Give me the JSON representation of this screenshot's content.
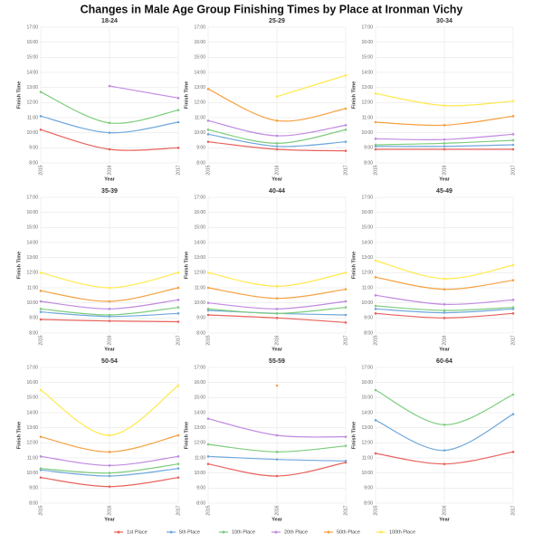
{
  "title": "Changes in Male Age Group Finishing Times by Place at Ironman Vichy",
  "chart_data": [
    {
      "type": "line",
      "title": "18-24",
      "x_label": "Year",
      "y_label": "Finish Time",
      "categories": [
        "2015",
        "2016",
        "2017"
      ],
      "ylim": [
        8,
        17
      ],
      "yticks": [
        {
          "value": 8,
          "label": "8:00"
        },
        {
          "value": 9,
          "label": "9:00"
        },
        {
          "value": 10,
          "label": "10:00"
        },
        {
          "value": 11,
          "label": "11:00"
        },
        {
          "value": 12,
          "label": "12:00"
        },
        {
          "value": 13,
          "label": "13:00"
        },
        {
          "value": 14,
          "label": "14:00"
        },
        {
          "value": 15,
          "label": "15:00"
        },
        {
          "value": 16,
          "label": "16:00"
        },
        {
          "value": 17,
          "label": "17:00"
        }
      ],
      "series": [
        {
          "name": "1st Place",
          "color": "#e8625d",
          "values": [
            10.2,
            8.9,
            9.0
          ]
        },
        {
          "name": "5th Place",
          "color": "#6fa8dc",
          "values": [
            11.1,
            10.0,
            10.7
          ]
        },
        {
          "name": "10th Place",
          "color": "#7dcc7d",
          "values": [
            12.7,
            10.65,
            11.5
          ]
        },
        {
          "name": "20th Place",
          "color": "#c08ae0",
          "values": [
            null,
            13.1,
            12.3
          ]
        },
        {
          "name": "50th Place",
          "color": "#f5a142",
          "values": [
            null,
            null,
            null
          ]
        },
        {
          "name": "100th Place",
          "color": "#ffe94d",
          "values": [
            null,
            null,
            null
          ]
        }
      ]
    },
    {
      "type": "line",
      "title": "25-29",
      "x_label": "Year",
      "y_label": "Finish Time",
      "categories": [
        "2015",
        "2016",
        "2017"
      ],
      "ylim": [
        8,
        17
      ],
      "yticks": [
        {
          "value": 8,
          "label": "8:00"
        },
        {
          "value": 9,
          "label": "9:00"
        },
        {
          "value": 10,
          "label": "10:00"
        },
        {
          "value": 11,
          "label": "11:00"
        },
        {
          "value": 12,
          "label": "12:00"
        },
        {
          "value": 13,
          "label": "13:00"
        },
        {
          "value": 14,
          "label": "14:00"
        },
        {
          "value": 15,
          "label": "15:00"
        },
        {
          "value": 16,
          "label": "16:00"
        },
        {
          "value": 17,
          "label": "17:00"
        }
      ],
      "series": [
        {
          "name": "1st Place",
          "color": "#e8625d",
          "values": [
            9.4,
            8.9,
            8.8
          ]
        },
        {
          "name": "5th Place",
          "color": "#6fa8dc",
          "values": [
            9.9,
            9.1,
            9.4
          ]
        },
        {
          "name": "10th Place",
          "color": "#7dcc7d",
          "values": [
            10.2,
            9.3,
            10.2
          ]
        },
        {
          "name": "20th Place",
          "color": "#c08ae0",
          "values": [
            10.8,
            9.8,
            10.5
          ]
        },
        {
          "name": "50th Place",
          "color": "#f5a142",
          "values": [
            12.9,
            10.8,
            11.6
          ]
        },
        {
          "name": "100th Place",
          "color": "#ffe94d",
          "values": [
            null,
            12.4,
            13.8
          ]
        }
      ]
    },
    {
      "type": "line",
      "title": "30-34",
      "x_label": "Year",
      "y_label": "Finish Time",
      "categories": [
        "2015",
        "2016",
        "2017"
      ],
      "ylim": [
        8,
        17
      ],
      "yticks": [
        {
          "value": 8,
          "label": "8:00"
        },
        {
          "value": 9,
          "label": "9:00"
        },
        {
          "value": 10,
          "label": "10:00"
        },
        {
          "value": 11,
          "label": "11:00"
        },
        {
          "value": 12,
          "label": "12:00"
        },
        {
          "value": 13,
          "label": "13:00"
        },
        {
          "value": 14,
          "label": "14:00"
        },
        {
          "value": 15,
          "label": "15:00"
        },
        {
          "value": 16,
          "label": "16:00"
        },
        {
          "value": 17,
          "label": "17:00"
        }
      ],
      "series": [
        {
          "name": "1st Place",
          "color": "#e8625d",
          "values": [
            8.9,
            8.9,
            8.9
          ]
        },
        {
          "name": "5th Place",
          "color": "#6fa8dc",
          "values": [
            9.1,
            9.1,
            9.2
          ]
        },
        {
          "name": "10th Place",
          "color": "#7dcc7d",
          "values": [
            9.2,
            9.3,
            9.5
          ]
        },
        {
          "name": "20th Place",
          "color": "#c08ae0",
          "values": [
            9.6,
            9.55,
            9.9
          ]
        },
        {
          "name": "50th Place",
          "color": "#f5a142",
          "values": [
            10.7,
            10.5,
            11.1
          ]
        },
        {
          "name": "100th Place",
          "color": "#ffe94d",
          "values": [
            12.6,
            11.8,
            12.1
          ]
        }
      ]
    },
    {
      "type": "line",
      "title": "35-39",
      "x_label": "Year",
      "y_label": "Finish Time",
      "categories": [
        "2015",
        "2016",
        "2017"
      ],
      "ylim": [
        8,
        17
      ],
      "yticks": [
        {
          "value": 8,
          "label": "8:00"
        },
        {
          "value": 9,
          "label": "9:00"
        },
        {
          "value": 10,
          "label": "10:00"
        },
        {
          "value": 11,
          "label": "11:00"
        },
        {
          "value": 12,
          "label": "12:00"
        },
        {
          "value": 13,
          "label": "13:00"
        },
        {
          "value": 14,
          "label": "14:00"
        },
        {
          "value": 15,
          "label": "15:00"
        },
        {
          "value": 16,
          "label": "16:00"
        },
        {
          "value": 17,
          "label": "17:00"
        }
      ],
      "series": [
        {
          "name": "1st Place",
          "color": "#e8625d",
          "values": [
            8.9,
            8.8,
            8.75
          ]
        },
        {
          "name": "5th Place",
          "color": "#6fa8dc",
          "values": [
            9.4,
            9.1,
            9.3
          ]
        },
        {
          "name": "10th Place",
          "color": "#7dcc7d",
          "values": [
            9.6,
            9.2,
            9.7
          ]
        },
        {
          "name": "20th Place",
          "color": "#c08ae0",
          "values": [
            10.1,
            9.6,
            10.2
          ]
        },
        {
          "name": "50th Place",
          "color": "#f5a142",
          "values": [
            10.8,
            10.1,
            11.0
          ]
        },
        {
          "name": "100th Place",
          "color": "#ffe94d",
          "values": [
            12.0,
            11.0,
            12.0
          ]
        }
      ]
    },
    {
      "type": "line",
      "title": "40-44",
      "x_label": "Year",
      "y_label": "Finish Time",
      "categories": [
        "2015",
        "2016",
        "2017"
      ],
      "ylim": [
        8,
        17
      ],
      "yticks": [
        {
          "value": 8,
          "label": "8:00"
        },
        {
          "value": 9,
          "label": "9:00"
        },
        {
          "value": 10,
          "label": "10:00"
        },
        {
          "value": 11,
          "label": "11:00"
        },
        {
          "value": 12,
          "label": "12:00"
        },
        {
          "value": 13,
          "label": "13:00"
        },
        {
          "value": 14,
          "label": "14:00"
        },
        {
          "value": 15,
          "label": "15:00"
        },
        {
          "value": 16,
          "label": "16:00"
        },
        {
          "value": 17,
          "label": "17:00"
        }
      ],
      "series": [
        {
          "name": "1st Place",
          "color": "#e8625d",
          "values": [
            9.2,
            9.0,
            8.7
          ]
        },
        {
          "name": "5th Place",
          "color": "#6fa8dc",
          "values": [
            9.5,
            9.3,
            9.2
          ]
        },
        {
          "name": "10th Place",
          "color": "#7dcc7d",
          "values": [
            9.6,
            9.3,
            9.7
          ]
        },
        {
          "name": "20th Place",
          "color": "#c08ae0",
          "values": [
            10.0,
            9.6,
            10.1
          ]
        },
        {
          "name": "50th Place",
          "color": "#f5a142",
          "values": [
            11.0,
            10.3,
            10.9
          ]
        },
        {
          "name": "100th Place",
          "color": "#ffe94d",
          "values": [
            12.0,
            11.1,
            12.0
          ]
        }
      ]
    },
    {
      "type": "line",
      "title": "45-49",
      "x_label": "Year",
      "y_label": "Finish Time",
      "categories": [
        "2015",
        "2016",
        "2017"
      ],
      "ylim": [
        8,
        17
      ],
      "yticks": [
        {
          "value": 8,
          "label": "8:00"
        },
        {
          "value": 9,
          "label": "9:00"
        },
        {
          "value": 10,
          "label": "10:00"
        },
        {
          "value": 11,
          "label": "11:00"
        },
        {
          "value": 12,
          "label": "12:00"
        },
        {
          "value": 13,
          "label": "13:00"
        },
        {
          "value": 14,
          "label": "14:00"
        },
        {
          "value": 15,
          "label": "15:00"
        },
        {
          "value": 16,
          "label": "16:00"
        },
        {
          "value": 17,
          "label": "17:00"
        }
      ],
      "series": [
        {
          "name": "1st Place",
          "color": "#e8625d",
          "values": [
            9.3,
            9.0,
            9.3
          ]
        },
        {
          "name": "5th Place",
          "color": "#6fa8dc",
          "values": [
            9.6,
            9.35,
            9.6
          ]
        },
        {
          "name": "10th Place",
          "color": "#7dcc7d",
          "values": [
            9.8,
            9.5,
            9.7
          ]
        },
        {
          "name": "20th Place",
          "color": "#c08ae0",
          "values": [
            10.5,
            9.9,
            10.2
          ]
        },
        {
          "name": "50th Place",
          "color": "#f5a142",
          "values": [
            11.7,
            10.9,
            11.5
          ]
        },
        {
          "name": "100th Place",
          "color": "#ffe94d",
          "values": [
            12.8,
            11.6,
            12.5
          ]
        }
      ]
    },
    {
      "type": "line",
      "title": "50-54",
      "x_label": "Year",
      "y_label": "Finish Time",
      "categories": [
        "2015",
        "2016",
        "2017"
      ],
      "ylim": [
        8,
        17
      ],
      "yticks": [
        {
          "value": 8,
          "label": "8:00"
        },
        {
          "value": 9,
          "label": "9:00"
        },
        {
          "value": 10,
          "label": "10:00"
        },
        {
          "value": 11,
          "label": "11:00"
        },
        {
          "value": 12,
          "label": "12:00"
        },
        {
          "value": 13,
          "label": "13:00"
        },
        {
          "value": 14,
          "label": "14:00"
        },
        {
          "value": 15,
          "label": "15:00"
        },
        {
          "value": 16,
          "label": "16:00"
        },
        {
          "value": 17,
          "label": "17:00"
        }
      ],
      "series": [
        {
          "name": "1st Place",
          "color": "#e8625d",
          "values": [
            9.7,
            9.1,
            9.7
          ]
        },
        {
          "name": "5th Place",
          "color": "#6fa8dc",
          "values": [
            10.2,
            9.8,
            10.3
          ]
        },
        {
          "name": "10th Place",
          "color": "#7dcc7d",
          "values": [
            10.3,
            10.0,
            10.6
          ]
        },
        {
          "name": "20th Place",
          "color": "#c08ae0",
          "values": [
            11.1,
            10.5,
            11.1
          ]
        },
        {
          "name": "50th Place",
          "color": "#f5a142",
          "values": [
            12.4,
            11.4,
            12.5
          ]
        },
        {
          "name": "100th Place",
          "color": "#ffe94d",
          "values": [
            15.5,
            12.5,
            15.8
          ]
        }
      ]
    },
    {
      "type": "line",
      "title": "55-59",
      "x_label": "Year",
      "y_label": "Finish Time",
      "categories": [
        "2015",
        "2016",
        "2017"
      ],
      "ylim": [
        8,
        17
      ],
      "yticks": [
        {
          "value": 8,
          "label": "8:00"
        },
        {
          "value": 9,
          "label": "9:00"
        },
        {
          "value": 10,
          "label": "10:00"
        },
        {
          "value": 11,
          "label": "11:00"
        },
        {
          "value": 12,
          "label": "12:00"
        },
        {
          "value": 13,
          "label": "13:00"
        },
        {
          "value": 14,
          "label": "14:00"
        },
        {
          "value": 15,
          "label": "15:00"
        },
        {
          "value": 16,
          "label": "16:00"
        },
        {
          "value": 17,
          "label": "17:00"
        }
      ],
      "series": [
        {
          "name": "1st Place",
          "color": "#e8625d",
          "values": [
            10.6,
            9.8,
            10.7
          ]
        },
        {
          "name": "5th Place",
          "color": "#6fa8dc",
          "values": [
            11.1,
            10.9,
            10.8
          ]
        },
        {
          "name": "10th Place",
          "color": "#7dcc7d",
          "values": [
            11.9,
            11.4,
            11.8
          ]
        },
        {
          "name": "20th Place",
          "color": "#c08ae0",
          "values": [
            13.6,
            12.5,
            12.4
          ]
        },
        {
          "name": "50th Place",
          "color": "#f5a142",
          "values": [
            null,
            15.8,
            null
          ]
        },
        {
          "name": "100th Place",
          "color": "#ffe94d",
          "values": [
            null,
            null,
            null
          ]
        }
      ]
    },
    {
      "type": "line",
      "title": "60-64",
      "x_label": "Year",
      "y_label": "Finish Time",
      "categories": [
        "2015",
        "2016",
        "2017"
      ],
      "ylim": [
        8,
        17
      ],
      "yticks": [
        {
          "value": 8,
          "label": "8:00"
        },
        {
          "value": 9,
          "label": "9:00"
        },
        {
          "value": 10,
          "label": "10:00"
        },
        {
          "value": 11,
          "label": "11:00"
        },
        {
          "value": 12,
          "label": "12:00"
        },
        {
          "value": 13,
          "label": "13:00"
        },
        {
          "value": 14,
          "label": "14:00"
        },
        {
          "value": 15,
          "label": "15:00"
        },
        {
          "value": 16,
          "label": "16:00"
        },
        {
          "value": 17,
          "label": "17:00"
        }
      ],
      "series": [
        {
          "name": "1st Place",
          "color": "#e8625d",
          "values": [
            11.3,
            10.6,
            11.4
          ]
        },
        {
          "name": "5th Place",
          "color": "#6fa8dc",
          "values": [
            13.5,
            11.5,
            13.9
          ]
        },
        {
          "name": "10th Place",
          "color": "#7dcc7d",
          "values": [
            15.5,
            13.2,
            15.2
          ]
        },
        {
          "name": "20th Place",
          "color": "#c08ae0",
          "values": [
            null,
            null,
            null
          ]
        },
        {
          "name": "50th Place",
          "color": "#f5a142",
          "values": [
            null,
            null,
            null
          ]
        },
        {
          "name": "100th Place",
          "color": "#ffe94d",
          "values": [
            null,
            null,
            null
          ]
        }
      ]
    }
  ]
}
